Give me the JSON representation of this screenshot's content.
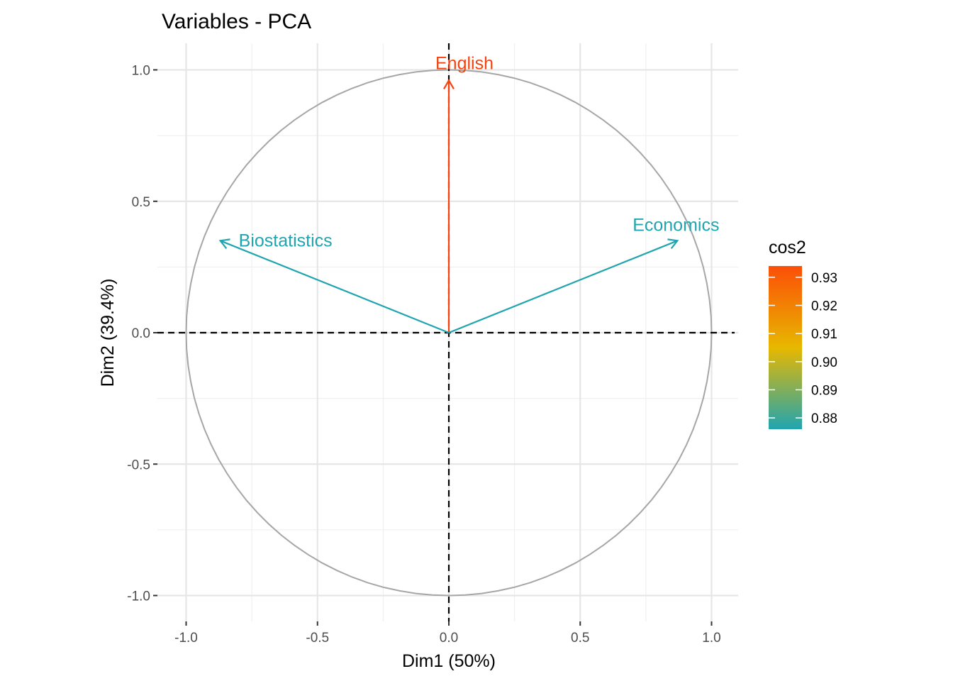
{
  "chart_data": {
    "type": "scatter",
    "title": "Variables - PCA",
    "xlabel": "Dim1 (50%)",
    "ylabel": "Dim2 (39.4%)",
    "xlim": [
      -1.1,
      1.1
    ],
    "ylim": [
      -1.1,
      1.1
    ],
    "x_ticks": [
      -1.0,
      -0.5,
      0.0,
      0.5,
      1.0
    ],
    "x_tick_labels": [
      "-1.0",
      "-0.5",
      "0.0",
      "0.5",
      "1.0"
    ],
    "y_ticks": [
      -1.0,
      -0.5,
      0.0,
      0.5,
      1.0
    ],
    "y_tick_labels": [
      "-1.0",
      "-0.5",
      "0.0",
      "0.5",
      "1.0"
    ],
    "grid": true,
    "correlation_circle": true,
    "variables": [
      {
        "label": "English",
        "x": 0.0,
        "y": 0.96,
        "cos2": 0.93,
        "color": "#f4430f"
      },
      {
        "label": "Economics",
        "x": 0.87,
        "y": 0.35,
        "cos2": 0.876,
        "color": "#20a5b0"
      },
      {
        "label": "Biostatistics",
        "x": -0.87,
        "y": 0.35,
        "cos2": 0.876,
        "color": "#20a5b0"
      }
    ],
    "legend": {
      "title": "cos2",
      "position": "right",
      "ticks": [
        "0.93",
        "0.92",
        "0.91",
        "0.90",
        "0.89",
        "0.88"
      ],
      "tick_values": [
        0.93,
        0.92,
        0.91,
        0.9,
        0.89,
        0.88
      ],
      "range": [
        0.876,
        0.934
      ],
      "gradient_colors": [
        "#20a5b0",
        "#e7b800",
        "#fc4e07"
      ]
    }
  }
}
